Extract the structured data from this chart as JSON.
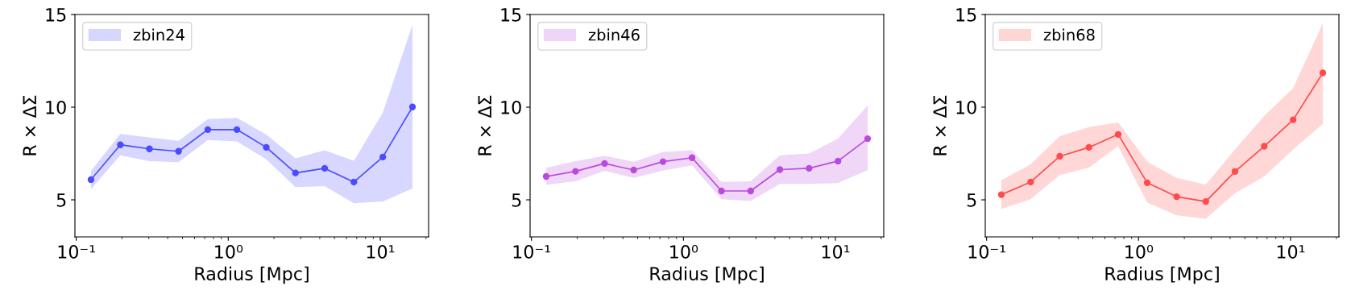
{
  "chart_data": [
    {
      "type": "line",
      "xlabel": "Radius [Mpc]",
      "ylabel": "R × ΔΣ",
      "x": [
        0.125,
        0.195,
        0.303,
        0.471,
        0.734,
        1.14,
        1.78,
        2.77,
        4.31,
        6.71,
        10.4,
        16.3
      ],
      "log": "x",
      "xlim": [
        0.098,
        20.8
      ],
      "ylim": [
        3,
        15
      ],
      "xticks": [
        {
          "value": 0.1,
          "label": "10⁻¹"
        },
        {
          "value": 1,
          "label": "10⁰"
        },
        {
          "value": 10,
          "label": "10¹"
        }
      ],
      "yticks": [
        5,
        10,
        15
      ],
      "marker": "circle",
      "legend": "top left",
      "grid": false,
      "series": [
        {
          "name": "zbin24",
          "color": "#4b4bff",
          "values": [
            6.09,
            7.97,
            7.75,
            7.62,
            8.79,
            8.79,
            7.83,
            6.45,
            6.7,
            5.96,
            7.31,
            10.01
          ],
          "lower": [
            5.58,
            7.4,
            7.09,
            7.03,
            8.23,
            8.15,
            7.18,
            5.68,
            5.74,
            4.81,
            4.91,
            5.61
          ],
          "upper": [
            6.57,
            8.55,
            8.37,
            8.18,
            9.36,
            9.42,
            8.52,
            7.24,
            7.67,
            7.11,
            9.71,
            14.45
          ]
        }
      ]
    },
    {
      "type": "line",
      "xlabel": "Radius [Mpc]",
      "ylabel": "R × ΔΣ",
      "x": [
        0.125,
        0.195,
        0.303,
        0.471,
        0.734,
        1.14,
        1.78,
        2.77,
        4.31,
        6.71,
        10.4,
        16.3
      ],
      "log": "x",
      "xlim": [
        0.098,
        20.8
      ],
      "ylim": [
        3,
        15
      ],
      "xticks": [
        {
          "value": 0.1,
          "label": "10⁻¹"
        },
        {
          "value": 1,
          "label": "10⁰"
        },
        {
          "value": 10,
          "label": "10¹"
        }
      ],
      "yticks": [
        5,
        10,
        15
      ],
      "marker": "circle",
      "legend": "top left",
      "grid": false,
      "series": [
        {
          "name": "zbin46",
          "color": "#b94ae0",
          "values": [
            6.26,
            6.54,
            6.96,
            6.61,
            7.06,
            7.27,
            5.48,
            5.48,
            6.63,
            6.7,
            7.09,
            8.3
          ],
          "lower": [
            5.8,
            6.0,
            6.57,
            6.19,
            6.58,
            6.86,
            5.03,
            4.94,
            5.86,
            5.86,
            5.9,
            6.6
          ],
          "upper": [
            6.73,
            7.09,
            7.38,
            7.05,
            7.59,
            7.67,
            5.97,
            6.0,
            7.4,
            7.5,
            8.3,
            10.1
          ]
        }
      ]
    },
    {
      "type": "line",
      "xlabel": "Radius [Mpc]",
      "ylabel": "R × ΔΣ",
      "x": [
        0.125,
        0.195,
        0.303,
        0.471,
        0.734,
        1.14,
        1.78,
        2.77,
        4.31,
        6.71,
        10.4,
        16.3
      ],
      "log": "x",
      "xlim": [
        0.098,
        20.8
      ],
      "ylim": [
        3,
        15
      ],
      "xticks": [
        {
          "value": 0.1,
          "label": "10⁻¹"
        },
        {
          "value": 1,
          "label": "10⁰"
        },
        {
          "value": 10,
          "label": "10¹"
        }
      ],
      "yticks": [
        5,
        10,
        15
      ],
      "marker": "circle",
      "legend": "top left",
      "grid": false,
      "series": [
        {
          "name": "zbin68",
          "color": "#ff4b4b",
          "values": [
            5.28,
            5.96,
            7.35,
            7.83,
            8.53,
            5.92,
            5.17,
            4.91,
            6.53,
            7.89,
            9.32,
            11.85
          ],
          "lower": [
            4.51,
            5.03,
            6.34,
            6.74,
            7.89,
            4.85,
            4.16,
            3.98,
            5.36,
            6.26,
            7.72,
            9.1
          ],
          "upper": [
            6.05,
            6.92,
            8.43,
            8.92,
            9.17,
            7.05,
            6.19,
            5.83,
            7.72,
            9.53,
            11.03,
            14.52
          ]
        }
      ]
    }
  ]
}
